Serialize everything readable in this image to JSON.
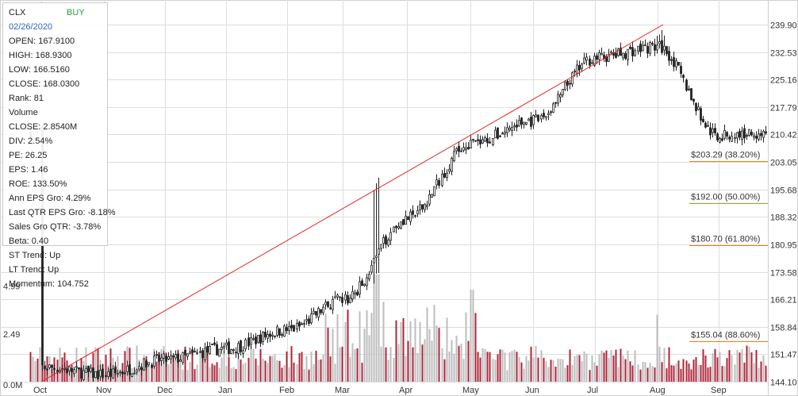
{
  "ticker": "CLX",
  "signal": "BUY",
  "date": "02/26/2020",
  "colors": {
    "up_candle": "#222222",
    "trend_line": "#e32424",
    "fib_line": "#e8801a",
    "vol_up": "#b0243a",
    "vol_down": "#bdbdbd",
    "signal": "#2e9e3c",
    "date": "#3363c4"
  },
  "info_rows": [
    "OPEN: 167.9100",
    "HIGH: 168.9300",
    "LOW: 166.5160",
    "CLOSE: 168.0300",
    "Rank: 81",
    "Volume",
    "CLOSE: 2.8540M",
    "DIV: 2.54%",
    "PE: 26.25",
    "EPS: 1.46",
    "ROE: 133.50%",
    "Ann EPS Gro: 4.29%",
    "Last QTR EPS Gro: -8.18%",
    "Sales Gro QTR: -3.78%",
    "Beta: 0.40",
    "ST Trend: Up",
    "LT Trend: Up",
    "Momentum: 104.752"
  ],
  "chart_data": {
    "type": "candlestick",
    "x_ticks": [
      "Oct",
      "Nov",
      "Dec",
      "Jan",
      "Feb",
      "Mar",
      "Apr",
      "May",
      "Jun",
      "Jul",
      "Aug",
      "Sep"
    ],
    "y_ticks": [
      239.9,
      232.53,
      225.16,
      217.79,
      210.42,
      203.05,
      195.68,
      188.32,
      180.95,
      173.58,
      166.21,
      158.84,
      151.47,
      144.1
    ],
    "ylim": [
      144.1,
      239.9
    ],
    "volume_ticks": [
      "4.99",
      "2.49",
      "0.0M"
    ],
    "volume_ylim": [
      0,
      7.5
    ],
    "grid": true,
    "trend_line": {
      "start": [
        "Oct",
        144.1
      ],
      "end": [
        "Aug",
        239.9
      ]
    },
    "fib_levels": [
      {
        "label": "$203.29 (38.20%)",
        "value": 203.29
      },
      {
        "label": "$192.00 (50.00%)",
        "value": 192.0
      },
      {
        "label": "$180.70 (61.80%)",
        "value": 180.7
      },
      {
        "label": "$155.04 (88.60%)",
        "value": 155.04
      }
    ],
    "price_path_monthly": [
      148,
      146,
      150,
      153,
      158,
      166,
      188,
      208,
      214,
      231,
      234,
      210
    ],
    "price_path_end": 211
  }
}
